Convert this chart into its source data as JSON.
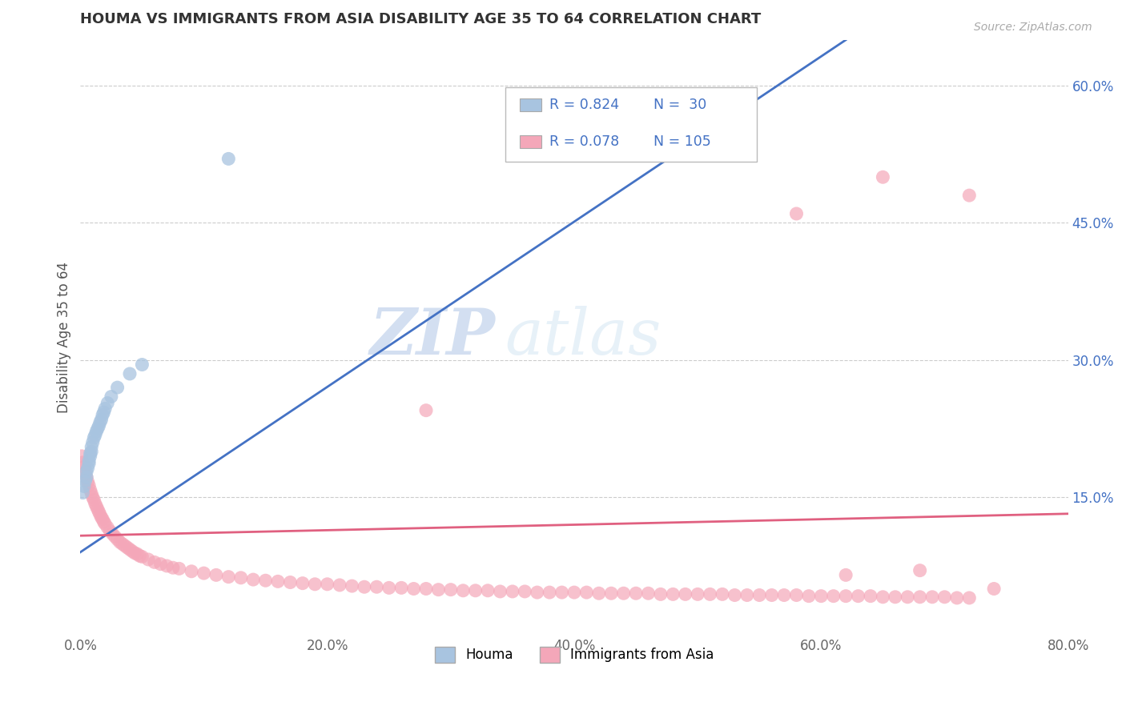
{
  "title": "HOUMA VS IMMIGRANTS FROM ASIA DISABILITY AGE 35 TO 64 CORRELATION CHART",
  "source_text": "Source: ZipAtlas.com",
  "ylabel": "Disability Age 35 to 64",
  "xlim": [
    0.0,
    0.8
  ],
  "ylim": [
    0.0,
    0.65
  ],
  "xtick_labels": [
    "0.0%",
    "20.0%",
    "40.0%",
    "60.0%",
    "80.0%"
  ],
  "xtick_vals": [
    0.0,
    0.2,
    0.4,
    0.6,
    0.8
  ],
  "ytick_labels": [
    "15.0%",
    "30.0%",
    "45.0%",
    "60.0%"
  ],
  "ytick_vals": [
    0.15,
    0.3,
    0.45,
    0.6
  ],
  "houma_color": "#a8c4e0",
  "immigrants_color": "#f4a7b9",
  "houma_line_color": "#4472c4",
  "immigrants_line_color": "#e06080",
  "watermark_zip": "ZIP",
  "watermark_atlas": "atlas",
  "houma_x": [
    0.002,
    0.003,
    0.004,
    0.005,
    0.005,
    0.006,
    0.007,
    0.007,
    0.008,
    0.008,
    0.009,
    0.009,
    0.01,
    0.011,
    0.012,
    0.013,
    0.014,
    0.015,
    0.016,
    0.017,
    0.018,
    0.019,
    0.02,
    0.022,
    0.025,
    0.03,
    0.04,
    0.05,
    0.12,
    0.42
  ],
  "houma_y": [
    0.155,
    0.162,
    0.168,
    0.172,
    0.178,
    0.182,
    0.187,
    0.19,
    0.195,
    0.198,
    0.2,
    0.205,
    0.21,
    0.215,
    0.218,
    0.222,
    0.225,
    0.228,
    0.232,
    0.235,
    0.24,
    0.243,
    0.247,
    0.253,
    0.26,
    0.27,
    0.285,
    0.295,
    0.52,
    0.57
  ],
  "immigrants_x": [
    0.001,
    0.002,
    0.003,
    0.004,
    0.005,
    0.006,
    0.007,
    0.008,
    0.009,
    0.01,
    0.011,
    0.012,
    0.013,
    0.014,
    0.015,
    0.016,
    0.017,
    0.018,
    0.019,
    0.02,
    0.022,
    0.024,
    0.026,
    0.028,
    0.03,
    0.032,
    0.034,
    0.036,
    0.038,
    0.04,
    0.042,
    0.044,
    0.046,
    0.048,
    0.05,
    0.055,
    0.06,
    0.065,
    0.07,
    0.075,
    0.08,
    0.09,
    0.1,
    0.11,
    0.12,
    0.13,
    0.14,
    0.15,
    0.16,
    0.17,
    0.18,
    0.19,
    0.2,
    0.21,
    0.22,
    0.23,
    0.24,
    0.25,
    0.26,
    0.27,
    0.28,
    0.29,
    0.3,
    0.31,
    0.32,
    0.33,
    0.34,
    0.35,
    0.36,
    0.37,
    0.38,
    0.39,
    0.4,
    0.41,
    0.42,
    0.43,
    0.44,
    0.45,
    0.46,
    0.47,
    0.48,
    0.49,
    0.5,
    0.51,
    0.52,
    0.53,
    0.54,
    0.55,
    0.56,
    0.57,
    0.58,
    0.59,
    0.6,
    0.61,
    0.62,
    0.63,
    0.64,
    0.65,
    0.66,
    0.67,
    0.68,
    0.69,
    0.7,
    0.71,
    0.72
  ],
  "immigrants_y": [
    0.195,
    0.188,
    0.183,
    0.177,
    0.172,
    0.167,
    0.163,
    0.158,
    0.154,
    0.15,
    0.147,
    0.143,
    0.14,
    0.137,
    0.134,
    0.131,
    0.128,
    0.126,
    0.123,
    0.121,
    0.117,
    0.113,
    0.11,
    0.107,
    0.104,
    0.101,
    0.099,
    0.097,
    0.095,
    0.093,
    0.091,
    0.089,
    0.088,
    0.086,
    0.085,
    0.082,
    0.079,
    0.077,
    0.075,
    0.073,
    0.072,
    0.069,
    0.067,
    0.065,
    0.063,
    0.062,
    0.06,
    0.059,
    0.058,
    0.057,
    0.056,
    0.055,
    0.055,
    0.054,
    0.053,
    0.052,
    0.052,
    0.051,
    0.051,
    0.05,
    0.05,
    0.049,
    0.049,
    0.048,
    0.048,
    0.048,
    0.047,
    0.047,
    0.047,
    0.046,
    0.046,
    0.046,
    0.046,
    0.046,
    0.045,
    0.045,
    0.045,
    0.045,
    0.045,
    0.044,
    0.044,
    0.044,
    0.044,
    0.044,
    0.044,
    0.043,
    0.043,
    0.043,
    0.043,
    0.043,
    0.043,
    0.042,
    0.042,
    0.042,
    0.042,
    0.042,
    0.042,
    0.041,
    0.041,
    0.041,
    0.041,
    0.041,
    0.041,
    0.04,
    0.04
  ],
  "extra_immigrants_x": [
    0.28,
    0.65,
    0.72,
    0.58,
    0.62,
    0.68,
    0.74
  ],
  "extra_immigrants_y": [
    0.245,
    0.5,
    0.48,
    0.46,
    0.065,
    0.07,
    0.05
  ],
  "houma_line_x0": 0.0,
  "houma_line_y0": 0.09,
  "houma_line_x1": 0.62,
  "houma_line_y1": 0.65,
  "immig_line_x0": 0.0,
  "immig_line_y0": 0.108,
  "immig_line_x1": 0.8,
  "immig_line_y1": 0.132
}
